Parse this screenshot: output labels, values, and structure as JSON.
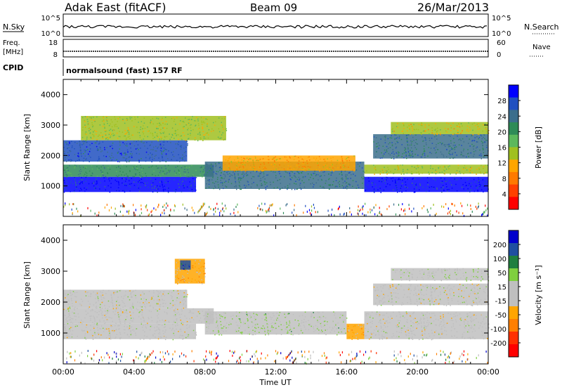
{
  "header": {
    "station": "Adak East (fitACF)",
    "beam": "Beam 09",
    "date": "26/Mar/2013"
  },
  "top_panels": {
    "nsky_label": "N.Sky",
    "nsky_ticks": [
      "10^5",
      "10^0"
    ],
    "nsearch_label": "N.Search",
    "nsearch_ticks": [
      "10^5",
      "10^0"
    ],
    "freq_label": "Freq.",
    "freq_unit": "[MHz]",
    "freq_ticks": [
      "18",
      "8"
    ],
    "nave_label": "Nave",
    "nave_ticks": [
      "60",
      "0"
    ],
    "cpid_label": "CPID",
    "cpid_text": "normalsound (fast) 157 RF"
  },
  "colors": {
    "power_scale": [
      "#0000ff",
      "#2050c0",
      "#3c6e8c",
      "#2e8b57",
      "#5cb85c",
      "#a0c020",
      "#ffa500",
      "#ff7a00",
      "#ff4000",
      "#ff0000"
    ],
    "velocity_scale": [
      "#0000cc",
      "#1f4fa0",
      "#1f7f3f",
      "#7fcf3f",
      "#bfbfbf",
      "#bfbfbf",
      "#ffa500",
      "#ff7f00",
      "#ff3000",
      "#ff0000"
    ]
  },
  "chart_data": [
    {
      "type": "heatmap",
      "name": "power",
      "ylabel": "Slant Range [km]",
      "ylim": [
        0,
        4500
      ],
      "yticks": [
        "1000",
        "2000",
        "3000",
        "4000"
      ],
      "xticks": [
        "00:00",
        "04:00",
        "08:00",
        "12:00",
        "16:00",
        "20:00",
        "00:00"
      ],
      "colorbar_label": "Power [dB]",
      "colorbar_ticks": [
        "4",
        "8",
        "12",
        "16",
        "20",
        "24",
        "28"
      ],
      "color_range": [
        0,
        30
      ],
      "bands": [
        {
          "t0": 0.0,
          "t1": 7.5,
          "r0": 800,
          "r1": 1300,
          "value": 27
        },
        {
          "t0": 0.0,
          "t1": 8.5,
          "r0": 1300,
          "r1": 1700,
          "value": 20
        },
        {
          "t0": 0.0,
          "t1": 7.0,
          "r0": 1800,
          "r1": 2500,
          "value": 24
        },
        {
          "t0": 1.0,
          "t1": 9.2,
          "r0": 2500,
          "r1": 3300,
          "value": 14
        },
        {
          "t0": 8.0,
          "t1": 17.0,
          "r0": 900,
          "r1": 1800,
          "value": 22
        },
        {
          "t0": 9.0,
          "t1": 16.5,
          "r0": 1500,
          "r1": 2000,
          "value": 10
        },
        {
          "t0": 17.0,
          "t1": 24.0,
          "r0": 800,
          "r1": 1300,
          "value": 27
        },
        {
          "t0": 17.0,
          "t1": 24.0,
          "r0": 1400,
          "r1": 1700,
          "value": 14
        },
        {
          "t0": 17.5,
          "t1": 24.0,
          "r0": 1900,
          "r1": 2700,
          "value": 22
        },
        {
          "t0": 18.5,
          "t1": 24.0,
          "r0": 2700,
          "r1": 3100,
          "value": 12
        }
      ]
    },
    {
      "type": "heatmap",
      "name": "velocity",
      "ylabel": "Slant Range [km]",
      "ylim": [
        0,
        4500
      ],
      "yticks": [
        "1000",
        "2000",
        "3000",
        "4000"
      ],
      "xticks": [
        "00:00",
        "04:00",
        "08:00",
        "12:00",
        "16:00",
        "20:00",
        "00:00"
      ],
      "xlabel": "Time UT",
      "colorbar_label": "Velocity [m s⁻¹]",
      "colorbar_ticks": [
        "200",
        "100",
        "50",
        "15",
        "-15",
        "-50",
        "-100",
        "-200"
      ],
      "color_range": [
        -250,
        250
      ],
      "bands": [
        {
          "t0": 0.0,
          "t1": 7.5,
          "r0": 800,
          "r1": 1300,
          "value": 0
        },
        {
          "t0": 0.0,
          "t1": 8.5,
          "r0": 1300,
          "r1": 1800,
          "value": 0
        },
        {
          "t0": 0.0,
          "t1": 7.0,
          "r0": 1800,
          "r1": 2400,
          "value": 0
        },
        {
          "t0": 6.3,
          "t1": 8.0,
          "r0": 2600,
          "r1": 3400,
          "value": -60
        },
        {
          "t0": 6.6,
          "t1": 7.2,
          "r0": 3050,
          "r1": 3350,
          "value": 180
        },
        {
          "t0": 8.0,
          "t1": 16.0,
          "r0": 950,
          "r1": 1700,
          "value": 40
        },
        {
          "t0": 16.0,
          "t1": 17.0,
          "r0": 800,
          "r1": 1300,
          "value": -70
        },
        {
          "t0": 17.0,
          "t1": 24.0,
          "r0": 800,
          "r1": 1700,
          "value": 0
        },
        {
          "t0": 17.5,
          "t1": 24.0,
          "r0": 1900,
          "r1": 2600,
          "value": 0
        },
        {
          "t0": 18.5,
          "t1": 24.0,
          "r0": 2700,
          "r1": 3100,
          "value": 30
        }
      ]
    }
  ]
}
